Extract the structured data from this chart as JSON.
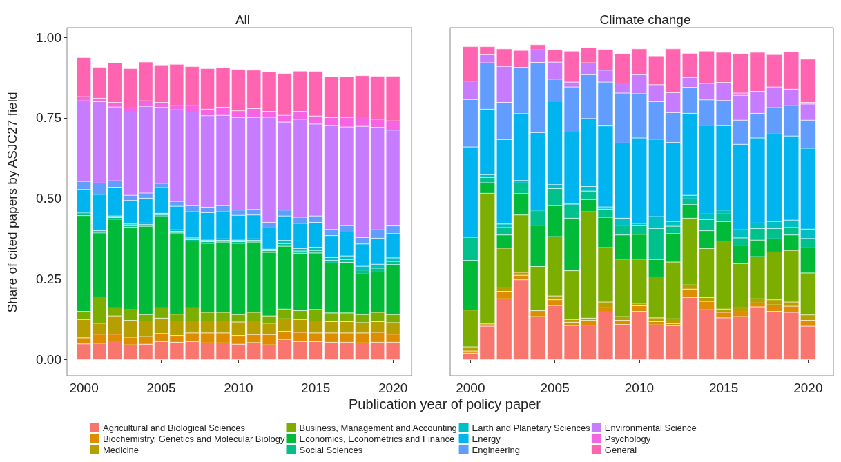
{
  "chart_data": [
    {
      "type": "bar",
      "stacked": true,
      "title": "All",
      "xlabel": "Publication year of policy paper",
      "ylabel": "Share of cited papers by ASJC27 field",
      "x": [
        2000,
        2001,
        2002,
        2003,
        2004,
        2005,
        2006,
        2007,
        2008,
        2009,
        2010,
        2011,
        2012,
        2013,
        2014,
        2015,
        2016,
        2017,
        2018,
        2019,
        2020
      ],
      "xlim": [
        1998.9,
        2021.2
      ],
      "xticks": [
        2000,
        2005,
        2010,
        2015,
        2020
      ],
      "ylim": [
        -0.05,
        1.03
      ],
      "yticks": [
        {
          "value": 0,
          "label": "0.00"
        },
        {
          "value": 0.25,
          "label": "0.25"
        },
        {
          "value": 0.5,
          "label": "0.50"
        },
        {
          "value": 0.75,
          "label": "0.75"
        },
        {
          "value": 1,
          "label": "1.00"
        }
      ],
      "grid": false,
      "legend": "bottom",
      "series": [
        {
          "name": "Agricultural and Biological Sciences",
          "color": "#f8766d",
          "values": [
            0.049,
            0.051,
            0.058,
            0.046,
            0.048,
            0.056,
            0.054,
            0.056,
            0.052,
            0.052,
            0.048,
            0.053,
            0.046,
            0.063,
            0.056,
            0.056,
            0.054,
            0.054,
            0.052,
            0.054,
            0.054
          ]
        },
        {
          "name": "Biochemistry, Genetics and Molecular Biology",
          "color": "#de8c00",
          "values": [
            0.019,
            0.028,
            0.021,
            0.024,
            0.024,
            0.025,
            0.021,
            0.027,
            0.031,
            0.031,
            0.027,
            0.025,
            0.032,
            0.025,
            0.029,
            0.027,
            0.029,
            0.029,
            0.031,
            0.031,
            0.025
          ]
        },
        {
          "name": "Medicine",
          "color": "#b79f00",
          "values": [
            0.057,
            0.034,
            0.057,
            0.052,
            0.048,
            0.048,
            0.045,
            0.037,
            0.037,
            0.037,
            0.042,
            0.042,
            0.035,
            0.039,
            0.04,
            0.037,
            0.035,
            0.035,
            0.032,
            0.033,
            0.036
          ]
        },
        {
          "name": "Business, Management and Accounting",
          "color": "#7cae00",
          "values": [
            0.025,
            0.082,
            0.025,
            0.033,
            0.02,
            0.032,
            0.021,
            0.041,
            0.027,
            0.027,
            0.023,
            0.027,
            0.023,
            0.03,
            0.027,
            0.036,
            0.027,
            0.027,
            0.025,
            0.029,
            0.025
          ]
        },
        {
          "name": "Economics, Econometrics and Finance",
          "color": "#00ba38",
          "values": [
            0.297,
            0.195,
            0.275,
            0.256,
            0.274,
            0.283,
            0.252,
            0.207,
            0.214,
            0.218,
            0.221,
            0.218,
            0.197,
            0.195,
            0.178,
            0.175,
            0.155,
            0.157,
            0.126,
            0.125,
            0.155
          ]
        },
        {
          "name": "Social Sciences",
          "color": "#00c08b",
          "values": [
            0.005,
            0.005,
            0.005,
            0.005,
            0.005,
            0.005,
            0.005,
            0.005,
            0.005,
            0.005,
            0.005,
            0.005,
            0.005,
            0.008,
            0.007,
            0.008,
            0.008,
            0.009,
            0.012,
            0.012,
            0.01
          ]
        },
        {
          "name": "Earth and Planetary Sciences",
          "color": "#00bfc4",
          "values": [
            0.005,
            0.005,
            0.005,
            0.005,
            0.005,
            0.005,
            0.005,
            0.005,
            0.005,
            0.005,
            0.005,
            0.005,
            0.005,
            0.01,
            0.008,
            0.01,
            0.009,
            0.011,
            0.012,
            0.012,
            0.011
          ]
        },
        {
          "name": "Energy",
          "color": "#00b4f0",
          "values": [
            0.071,
            0.113,
            0.089,
            0.073,
            0.077,
            0.08,
            0.073,
            0.081,
            0.085,
            0.084,
            0.077,
            0.074,
            0.066,
            0.076,
            0.078,
            0.077,
            0.068,
            0.074,
            0.069,
            0.081,
            0.075
          ]
        },
        {
          "name": "Engineering",
          "color": "#619cff",
          "values": [
            0.025,
            0.035,
            0.02,
            0.016,
            0.016,
            0.013,
            0.015,
            0.019,
            0.017,
            0.019,
            0.016,
            0.017,
            0.017,
            0.018,
            0.019,
            0.02,
            0.019,
            0.02,
            0.02,
            0.026,
            0.024
          ]
        },
        {
          "name": "Environmental Science",
          "color": "#c77cff",
          "values": [
            0.25,
            0.252,
            0.229,
            0.258,
            0.269,
            0.236,
            0.284,
            0.29,
            0.284,
            0.28,
            0.287,
            0.285,
            0.326,
            0.273,
            0.304,
            0.285,
            0.322,
            0.306,
            0.345,
            0.318,
            0.297
          ]
        },
        {
          "name": "Psychology",
          "color": "#f564e3",
          "values": [
            0.013,
            0.011,
            0.014,
            0.013,
            0.017,
            0.015,
            0.013,
            0.02,
            0.02,
            0.025,
            0.021,
            0.028,
            0.018,
            0.021,
            0.024,
            0.025,
            0.025,
            0.03,
            0.029,
            0.025,
            0.029
          ]
        },
        {
          "name": "General",
          "color": "#ff64b0",
          "values": [
            0.121,
            0.096,
            0.122,
            0.122,
            0.12,
            0.116,
            0.128,
            0.121,
            0.126,
            0.122,
            0.128,
            0.119,
            0.122,
            0.129,
            0.125,
            0.138,
            0.127,
            0.126,
            0.128,
            0.133,
            0.138
          ]
        }
      ]
    },
    {
      "type": "bar",
      "stacked": true,
      "title": "Climate change",
      "x": [
        2000,
        2001,
        2002,
        2003,
        2004,
        2005,
        2006,
        2007,
        2008,
        2009,
        2010,
        2011,
        2012,
        2013,
        2014,
        2015,
        2016,
        2017,
        2018,
        2019,
        2020
      ],
      "xlim": [
        1998.8,
        2021.5
      ],
      "xticks": [
        2000,
        2005,
        2010,
        2015,
        2020
      ],
      "ylim": [
        -0.05,
        1.03
      ],
      "tick_labels": "x",
      "grid": false,
      "series": [
        {
          "color": "#f8766d",
          "values": [
            0.02,
            0.104,
            0.189,
            0.248,
            0.134,
            0.168,
            0.106,
            0.107,
            0.148,
            0.109,
            0.15,
            0.108,
            0.105,
            0.193,
            0.155,
            0.13,
            0.134,
            0.164,
            0.15,
            0.147,
            0.104
          ]
        },
        {
          "color": "#de8c00",
          "values": [
            0.007,
            0.007,
            0.023,
            0.014,
            0.014,
            0.018,
            0.01,
            0.015,
            0.013,
            0.013,
            0.017,
            0.01,
            0.007,
            0.026,
            0.026,
            0.017,
            0.014,
            0.012,
            0.02,
            0.019,
            0.018
          ]
        },
        {
          "color": "#b79f00",
          "values": [
            0.013,
            0,
            0.011,
            0.009,
            0.004,
            0.012,
            0.009,
            0.007,
            0.018,
            0.012,
            0.008,
            0.012,
            0.015,
            0.013,
            0.012,
            0.01,
            0.013,
            0.013,
            0.016,
            0.013,
            0.017
          ]
        },
        {
          "color": "#7cae00",
          "values": [
            0.114,
            0.405,
            0.123,
            0.178,
            0.137,
            0.184,
            0.151,
            0.33,
            0.169,
            0.178,
            0.137,
            0.127,
            0.176,
            0.207,
            0.152,
            0.211,
            0.137,
            0.131,
            0.148,
            0.16,
            0.13
          ]
        },
        {
          "color": "#00ba38",
          "values": [
            0.154,
            0.033,
            0.041,
            0.066,
            0.128,
            0.096,
            0.163,
            0.038,
            0.094,
            0.075,
            0.077,
            0.054,
            0.088,
            0.042,
            0.055,
            0.06,
            0.057,
            0.051,
            0.041,
            0.048,
            0.078
          ]
        },
        {
          "color": "#00c08b",
          "values": [
            0.072,
            0.016,
            0.023,
            0.033,
            0.041,
            0.053,
            0.041,
            0.026,
            0.025,
            0.03,
            0.027,
            0.096,
            0.023,
            0.018,
            0.035,
            0.024,
            0.023,
            0.036,
            0.032,
            0.023,
            0.029
          ]
        },
        {
          "color": "#00bfc4",
          "values": [
            0,
            0.009,
            0.011,
            0.008,
            0.006,
            0.012,
            0.003,
            0.014,
            0.007,
            0.022,
            0.007,
            0.037,
            0.015,
            0.011,
            0.017,
            0.012,
            0.025,
            0.017,
            0.022,
            0.023,
            0.029
          ]
        },
        {
          "color": "#00b4f0",
          "values": [
            0.28,
            0.203,
            0.262,
            0.207,
            0.24,
            0.259,
            0.223,
            0.211,
            0.251,
            0.233,
            0.265,
            0.24,
            0.245,
            0.254,
            0.275,
            0.262,
            0.265,
            0.264,
            0.271,
            0.261,
            0.251
          ]
        },
        {
          "color": "#619cff",
          "values": [
            0.147,
            0.144,
            0.115,
            0.144,
            0.218,
            0.068,
            0.14,
            0.136,
            0.136,
            0.155,
            0.137,
            0.116,
            0.092,
            0.081,
            0.079,
            0.078,
            0.075,
            0.076,
            0.082,
            0.094,
            0.087
          ]
        },
        {
          "color": "#c77cff",
          "values": [
            0.057,
            0.025,
            0.112,
            0,
            0.039,
            0.053,
            0.015,
            0.037,
            0.037,
            0.031,
            0.059,
            0.053,
            0.062,
            0.03,
            0.051,
            0.056,
            0.077,
            0.068,
            0.064,
            0.051,
            0.05
          ]
        },
        {
          "color": "#f564e3",
          "values": [
            0,
            0,
            0,
            0,
            0,
            0,
            0,
            0,
            0,
            0,
            0,
            0,
            0,
            0,
            0,
            0,
            0.007,
            0,
            0,
            0,
            0.005
          ]
        },
        {
          "color": "#ff64b0",
          "values": [
            0.107,
            0.025,
            0.054,
            0.052,
            0.016,
            0.038,
            0.096,
            0.046,
            0.064,
            0.09,
            0.08,
            0.089,
            0.136,
            0.075,
            0.1,
            0.093,
            0.121,
            0.121,
            0.1,
            0.116,
            0.134
          ]
        }
      ]
    }
  ]
}
